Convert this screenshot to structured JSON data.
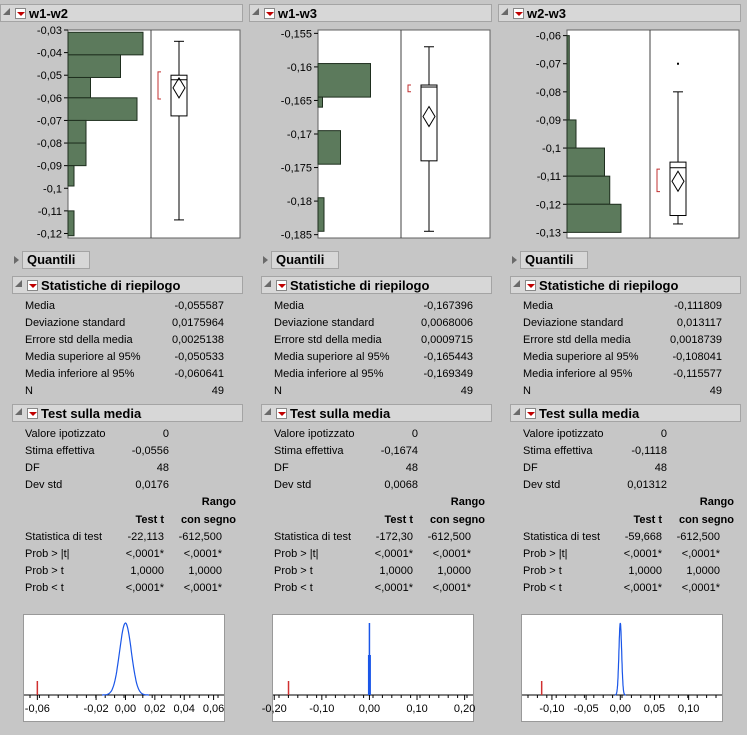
{
  "columns": [
    {
      "title": "w1-w2",
      "axis_ticks": [
        "-0,03",
        "-0,04",
        "-0,05",
        "-0,06",
        "-0,07",
        "-0,08",
        "-0,09",
        "-0,1",
        "-0,11",
        "-0,12"
      ],
      "quantili": "Quantili",
      "stats_title": "Statistiche di riepilogo",
      "stats": [
        {
          "label": "Media",
          "value": "-0,055587"
        },
        {
          "label": "Deviazione standard",
          "value": "0,0175964"
        },
        {
          "label": "Errore std della media",
          "value": "0,0025138"
        },
        {
          "label": "Media superiore al 95%",
          "value": "-0,050533"
        },
        {
          "label": "Media inferiore al 95%",
          "value": "-0,060641"
        },
        {
          "label": "N",
          "value": "49"
        }
      ],
      "test_title": "Test sulla media",
      "test_top": [
        {
          "label": "Valore ipotizzato",
          "value": "0"
        },
        {
          "label": "Stima effettiva",
          "value": "-0,0556"
        },
        {
          "label": "DF",
          "value": "48"
        },
        {
          "label": "Dev std",
          "value": "0,0176"
        }
      ],
      "test_rows": [
        {
          "label": "Statistica di test",
          "t": "-22,113",
          "r": "-612,500"
        },
        {
          "label": "Prob > |t|",
          "t": "<,0001*",
          "r": "<,0001*"
        },
        {
          "label": "Prob > t",
          "t": "1,0000",
          "r": "1,0000"
        },
        {
          "label": "Prob < t",
          "t": "<,0001*",
          "r": "<,0001*"
        }
      ],
      "dist_ticks": [
        "-0,06",
        "-0,02",
        "0,00",
        "0,02",
        "0,04",
        "0,06"
      ]
    },
    {
      "title": "w1-w3",
      "axis_ticks": [
        "-0,155",
        "-0,16",
        "-0,165",
        "-0,17",
        "-0,175",
        "-0,18",
        "-0,185"
      ],
      "quantili": "Quantili",
      "stats_title": "Statistiche di riepilogo",
      "stats": [
        {
          "label": "Media",
          "value": "-0,167396"
        },
        {
          "label": "Deviazione standard",
          "value": "0,0068006"
        },
        {
          "label": "Errore std della media",
          "value": "0,0009715"
        },
        {
          "label": "Media superiore al 95%",
          "value": "-0,165443"
        },
        {
          "label": "Media inferiore al 95%",
          "value": "-0,169349"
        },
        {
          "label": "N",
          "value": "49"
        }
      ],
      "test_title": "Test sulla media",
      "test_top": [
        {
          "label": "Valore ipotizzato",
          "value": "0"
        },
        {
          "label": "Stima effettiva",
          "value": "-0,1674"
        },
        {
          "label": "DF",
          "value": "48"
        },
        {
          "label": "Dev std",
          "value": "0,0068"
        }
      ],
      "test_rows": [
        {
          "label": "Statistica di test",
          "t": "-172,30",
          "r": "-612,500"
        },
        {
          "label": "Prob > |t|",
          "t": "<,0001*",
          "r": "<,0001*"
        },
        {
          "label": "Prob > t",
          "t": "1,0000",
          "r": "1,0000"
        },
        {
          "label": "Prob < t",
          "t": "<,0001*",
          "r": "<,0001*"
        }
      ],
      "dist_ticks": [
        "-0,20",
        "-0,10",
        "0,00",
        "0,10",
        "0,20"
      ]
    },
    {
      "title": "w2-w3",
      "axis_ticks": [
        "-0,06",
        "-0,07",
        "-0,08",
        "-0,09",
        "-0,1",
        "-0,11",
        "-0,12",
        "-0,13"
      ],
      "quantili": "Quantili",
      "stats_title": "Statistiche di riepilogo",
      "stats": [
        {
          "label": "Media",
          "value": "-0,111809"
        },
        {
          "label": "Deviazione standard",
          "value": "0,013117"
        },
        {
          "label": "Errore std della media",
          "value": "0,0018739"
        },
        {
          "label": "Media superiore al 95%",
          "value": "-0,108041"
        },
        {
          "label": "Media inferiore al 95%",
          "value": "-0,115577"
        },
        {
          "label": "N",
          "value": "49"
        }
      ],
      "test_title": "Test sulla media",
      "test_top": [
        {
          "label": "Valore ipotizzato",
          "value": "0"
        },
        {
          "label": "Stima effettiva",
          "value": "-0,1118"
        },
        {
          "label": "DF",
          "value": "48"
        },
        {
          "label": "Dev std",
          "value": "0,01312"
        }
      ],
      "test_rows": [
        {
          "label": "Statistica di test",
          "t": "-59,668",
          "r": "-612,500"
        },
        {
          "label": "Prob > |t|",
          "t": "<,0001*",
          "r": "<,0001*"
        },
        {
          "label": "Prob > t",
          "t": "1,0000",
          "r": "1,0000"
        },
        {
          "label": "Prob < t",
          "t": "<,0001*",
          "r": "<,0001*"
        }
      ],
      "dist_ticks": [
        "-0,10",
        "-0,05",
        "0,00",
        "0,05",
        "0,10"
      ]
    }
  ],
  "labels": {
    "test_t": "Test t",
    "rango": "Rango",
    "con_segno": "con segno"
  },
  "colors": {
    "bar_fill": "#5c7a5c",
    "curve": "#1a56e8",
    "marker": "#d03030",
    "panel_bg": "#c6c6c6"
  }
}
